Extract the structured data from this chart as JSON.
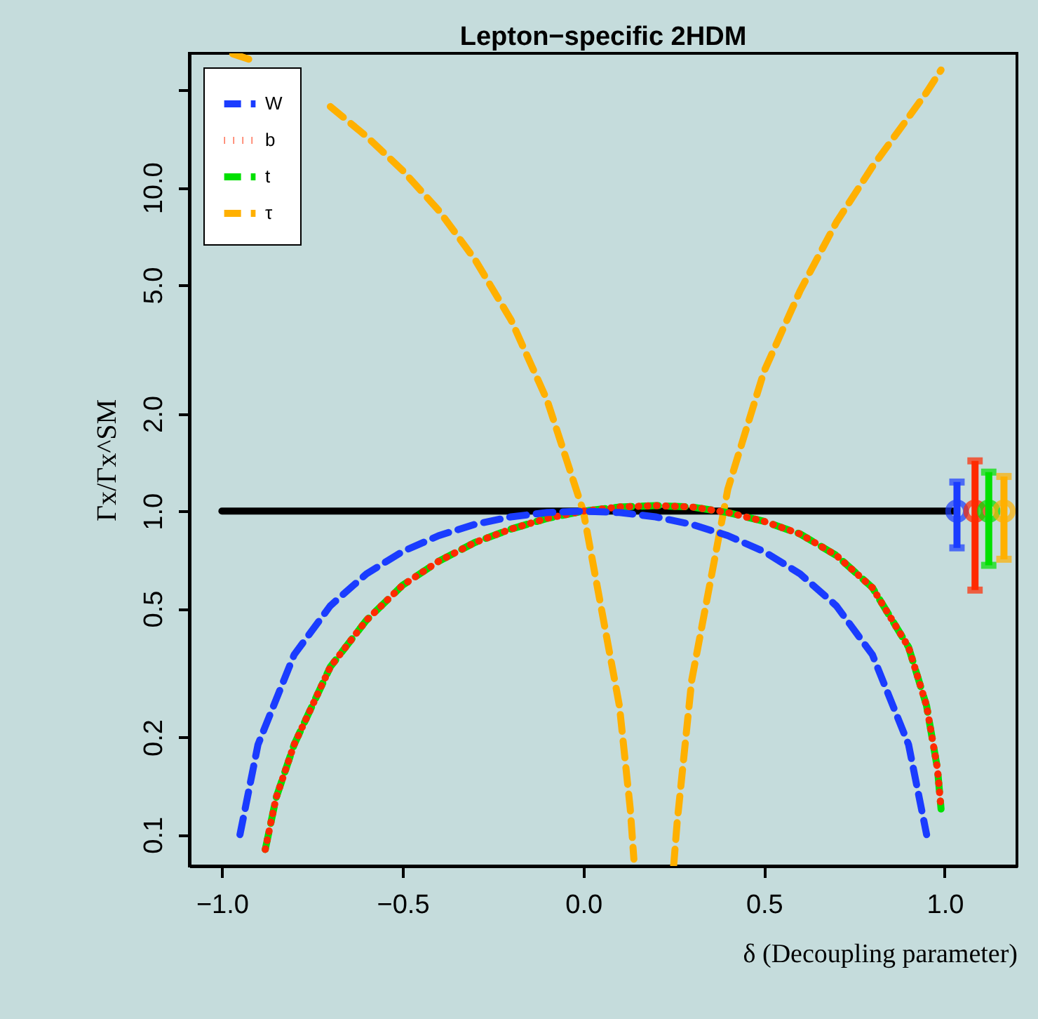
{
  "chart_data": {
    "type": "line",
    "title": "Lepton−specific 2HDM",
    "xlabel": "δ   (Decoupling parameter)",
    "ylabel": "Γx/Γx^SM",
    "log": "y",
    "xlim": [
      -1.09,
      1.2
    ],
    "ylim": [
      0.08,
      26
    ],
    "xticks": [
      {
        "value": -1,
        "label": "−1.0"
      },
      {
        "value": -0.5,
        "label": "−0.5"
      },
      {
        "value": 0,
        "label": "0.0"
      },
      {
        "value": 0.5,
        "label": "0.5"
      },
      {
        "value": 1,
        "label": "1.0"
      }
    ],
    "yticks": [
      0.1,
      0.2,
      0.5,
      {
        "value": 1,
        "label": "1.0"
      },
      {
        "value": 2,
        "label": "2.0"
      },
      {
        "value": 5,
        "label": "5.0"
      },
      {
        "value": 10,
        "label": "10.0"
      },
      {
        "value": 20,
        "label": null
      }
    ],
    "grid": false,
    "legend": "top left",
    "series": [
      {
        "name": "W",
        "color": "#1a3cff",
        "line_style": "dashed",
        "x": [
          -0.95,
          -0.9,
          -0.8,
          -0.7,
          -0.6,
          -0.5,
          -0.4,
          -0.3,
          -0.2,
          -0.1,
          0,
          0.1,
          0.2,
          0.3,
          0.4,
          0.5,
          0.6,
          0.7,
          0.8,
          0.9,
          0.95
        ],
        "values": [
          0.1,
          0.19,
          0.36,
          0.51,
          0.64,
          0.75,
          0.84,
          0.91,
          0.96,
          0.99,
          1.0,
          0.99,
          0.96,
          0.91,
          0.84,
          0.75,
          0.64,
          0.51,
          0.36,
          0.19,
          0.1
        ]
      },
      {
        "name": "b",
        "color": "#ff2a00",
        "line_style": "dotted",
        "x": [
          -0.88,
          -0.85,
          -0.8,
          -0.7,
          -0.6,
          -0.5,
          -0.4,
          -0.3,
          -0.2,
          -0.1,
          0,
          0.1,
          0.2,
          0.3,
          0.4,
          0.5,
          0.6,
          0.7,
          0.8,
          0.9,
          0.95,
          0.98,
          0.99
        ],
        "values": [
          0.09,
          0.13,
          0.19,
          0.33,
          0.46,
          0.59,
          0.7,
          0.8,
          0.88,
          0.95,
          1.0,
          1.03,
          1.04,
          1.03,
          0.99,
          0.93,
          0.85,
          0.73,
          0.58,
          0.38,
          0.25,
          0.16,
          0.12
        ]
      },
      {
        "name": "t",
        "color": "#00e000",
        "line_style": "dashed",
        "x": [
          -0.88,
          -0.85,
          -0.8,
          -0.7,
          -0.6,
          -0.5,
          -0.4,
          -0.3,
          -0.2,
          -0.1,
          0,
          0.1,
          0.2,
          0.3,
          0.4,
          0.5,
          0.6,
          0.7,
          0.8,
          0.9,
          0.95,
          0.98,
          0.99
        ],
        "values": [
          0.09,
          0.13,
          0.19,
          0.33,
          0.46,
          0.59,
          0.7,
          0.8,
          0.88,
          0.95,
          1.0,
          1.03,
          1.04,
          1.03,
          0.99,
          0.93,
          0.85,
          0.73,
          0.58,
          0.38,
          0.25,
          0.16,
          0.12
        ]
      },
      {
        "name": "τ",
        "color": "#ffb000",
        "line_style": "dashed",
        "x": [
          -0.97,
          -0.9,
          -0.8,
          -0.7,
          -0.6,
          -0.5,
          -0.4,
          -0.3,
          -0.2,
          -0.1,
          0,
          0.1,
          0.13,
          0.14,
          0.2,
          0.25,
          0.26,
          0.3,
          0.4,
          0.5,
          0.6,
          0.7,
          0.8,
          0.9,
          0.95,
          0.99
        ],
        "values": [
          25.9,
          24.4,
          null,
          17.8,
          14.4,
          11.3,
          8.5,
          6.0,
          3.9,
          2.2,
          1.0,
          0.25,
          0.12,
          0.084,
          null,
          0.08,
          0.11,
          0.3,
          1.17,
          2.7,
          4.8,
          7.8,
          11.6,
          16.5,
          19.7,
          23.1
        ]
      },
      {
        "color": "#000000",
        "line_style": "solid",
        "x": [
          -1.0,
          1.03
        ],
        "values": [
          1.0,
          1.0
        ]
      },
      {
        "type": "scatter",
        "marker": "circle",
        "color": "#1a3cff",
        "x": [
          1.034
        ],
        "values": [
          1.0
        ],
        "errors": [
          [
            0.77,
            1.23
          ]
        ]
      },
      {
        "type": "scatter",
        "marker": "circle",
        "color": "#ff2a00",
        "x": [
          1.084
        ],
        "values": [
          1.0
        ],
        "errors": [
          [
            0.57,
            1.43
          ]
        ]
      },
      {
        "type": "scatter",
        "marker": "circle",
        "color": "#00e000",
        "x": [
          1.122
        ],
        "values": [
          1.0
        ],
        "errors": [
          [
            0.68,
            1.32
          ]
        ]
      },
      {
        "type": "scatter",
        "marker": "circle",
        "color": "#ffb000",
        "x": [
          1.164
        ],
        "values": [
          1.0
        ],
        "errors": [
          [
            0.71,
            1.28
          ]
        ]
      }
    ]
  }
}
